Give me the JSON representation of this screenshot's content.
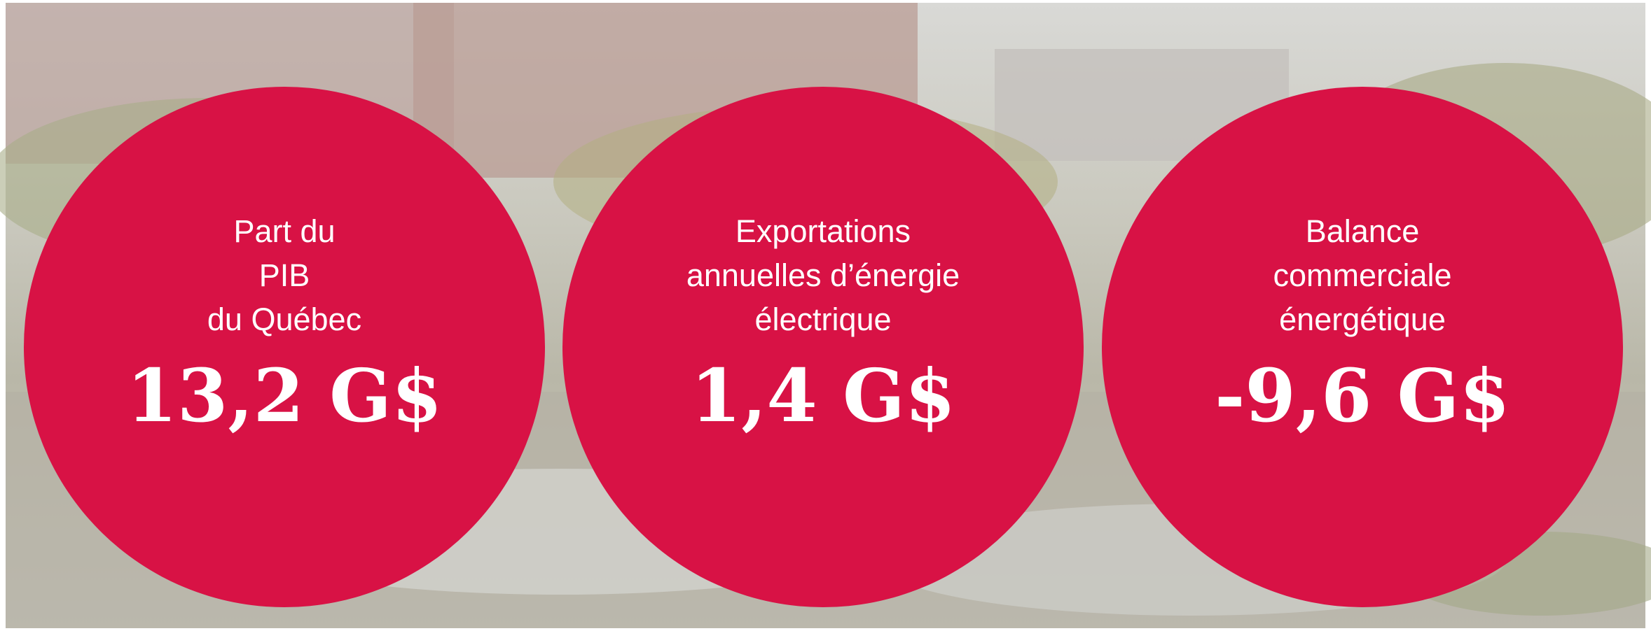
{
  "circles": [
    {
      "label_lines": [
        "Part du",
        "PIB",
        "du Québec"
      ],
      "value": "13,2 G$"
    },
    {
      "label_lines": [
        "Exportations",
        "annuelles d’énergie",
        "électrique"
      ],
      "value": "1,4 G$"
    },
    {
      "label_lines": [
        "Balance",
        "commerciale",
        "énergétique"
      ],
      "value": "-9,6 G$"
    }
  ]
}
